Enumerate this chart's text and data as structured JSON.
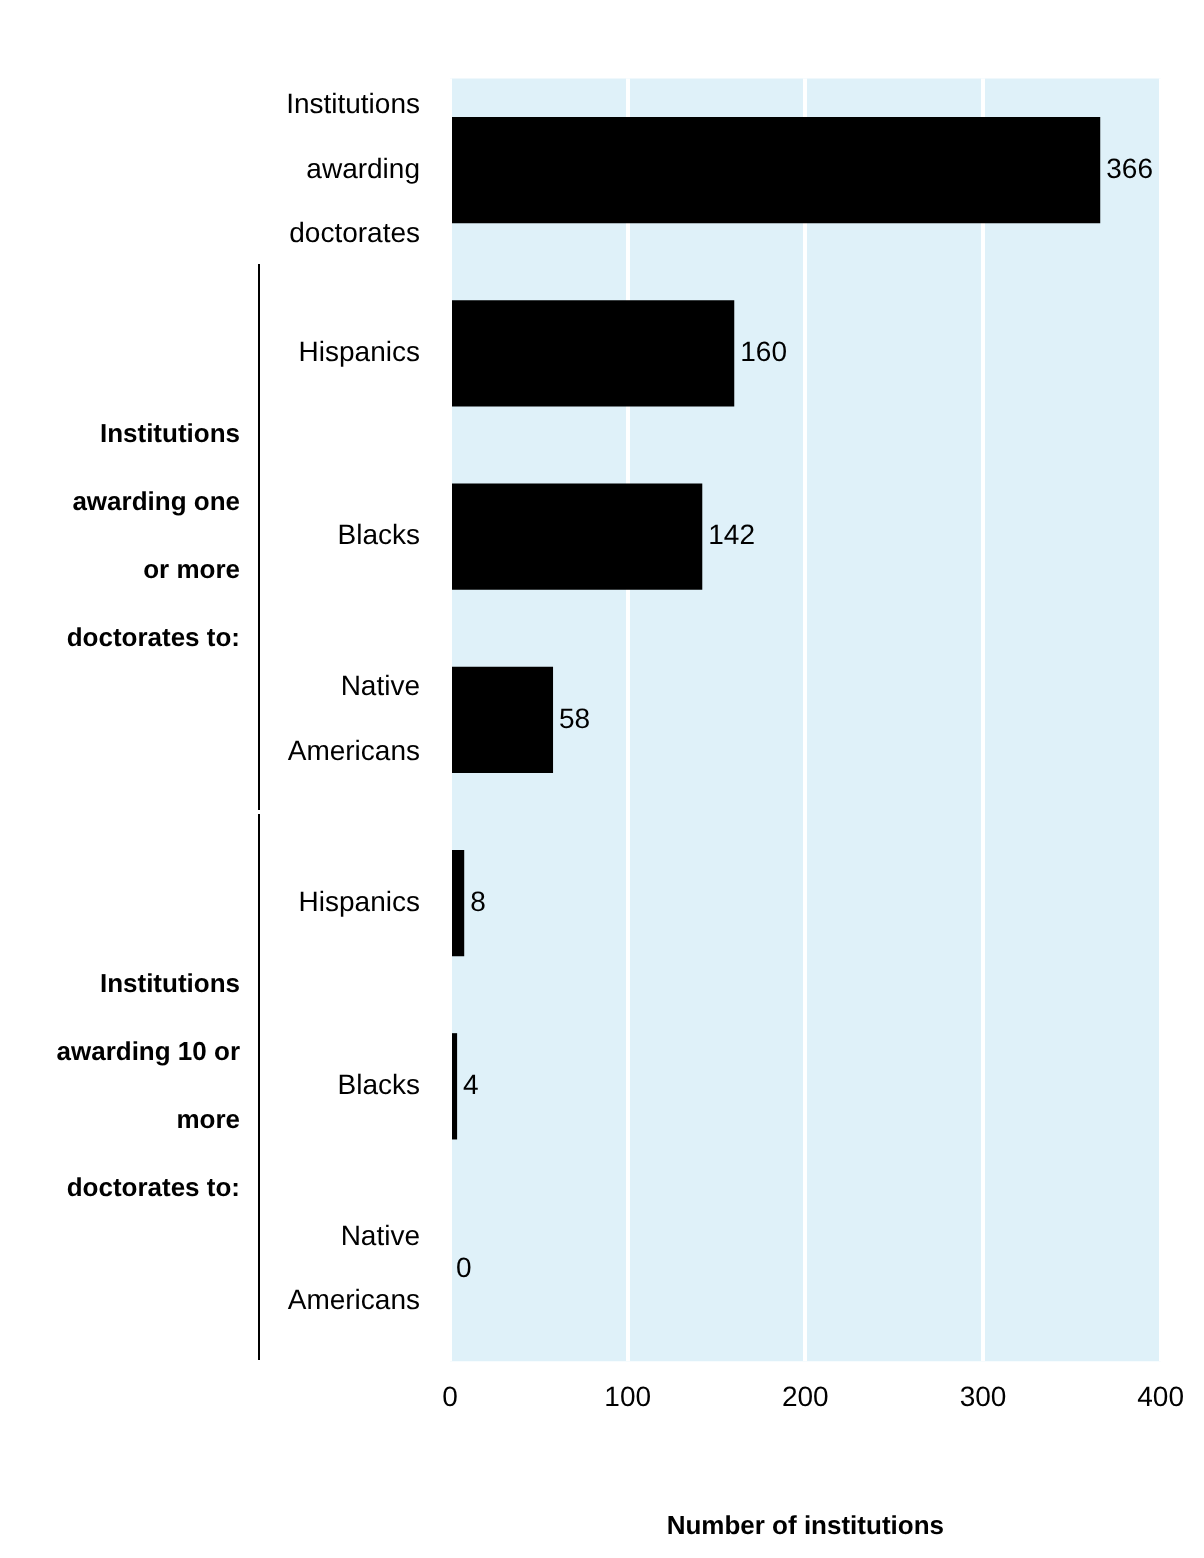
{
  "chart_data": {
    "type": "bar",
    "orientation": "horizontal",
    "categories": [
      "Institutions awarding doctorates",
      "Hispanics",
      "Blacks",
      "Native Americans",
      "Hispanics",
      "Blacks",
      "Native Americans"
    ],
    "values": [
      366,
      160,
      142,
      58,
      8,
      4,
      0
    ],
    "color": "#000000",
    "data_labels": true,
    "xlim": [
      0,
      400
    ],
    "xticks": [
      0,
      100,
      200,
      300,
      400
    ],
    "grid": "x",
    "xlabel": "Number of institutions",
    "annotations": [
      "Institutions awarding one or more doctorates to:",
      "Institutions awarding 10 or more doctorates to:"
    ]
  }
}
